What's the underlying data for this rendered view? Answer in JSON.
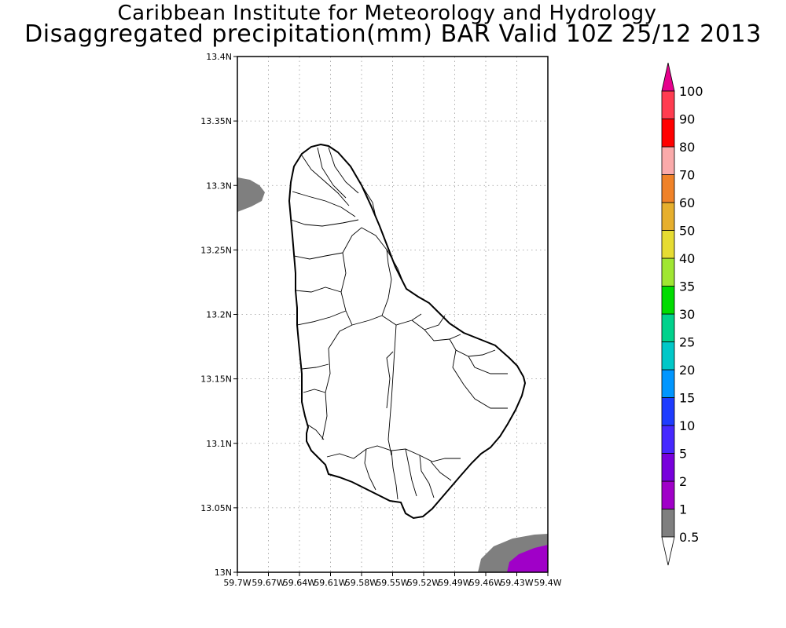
{
  "header": {
    "title": "Caribbean Institute for Meteorology and Hydrology",
    "subtitle": "Disaggregated precipitation(mm) BAR Valid 10Z 25/12 2013"
  },
  "map": {
    "lat_range": [
      13.0,
      13.4
    ],
    "lon_range": [
      -59.7,
      -59.4
    ],
    "lat_ticks": [
      "13N",
      "13.05N",
      "13.1N",
      "13.15N",
      "13.2N",
      "13.25N",
      "13.3N",
      "13.35N",
      "13.4N"
    ],
    "lon_ticks": [
      "59.7W",
      "59.67W",
      "59.64W",
      "59.61W",
      "59.58W",
      "59.55W",
      "59.52W",
      "59.49W",
      "59.46W",
      "59.43W",
      "59.4W"
    ],
    "grid": true
  },
  "colorbar": {
    "levels": [
      "0.5",
      "1",
      "2",
      "5",
      "10",
      "15",
      "20",
      "25",
      "30",
      "35",
      "40",
      "50",
      "60",
      "70",
      "80",
      "90",
      "100"
    ],
    "colors": [
      "#ffffff",
      "#7f7f7f",
      "#a000c8",
      "#7800dc",
      "#4628ff",
      "#1e3cff",
      "#0096ff",
      "#00c8c8",
      "#00d28c",
      "#00dc00",
      "#a0e632",
      "#e6dc32",
      "#e6af2d",
      "#f08228",
      "#faaaaa",
      "#ff0000",
      "#ff3c50",
      "#e6008c"
    ]
  }
}
